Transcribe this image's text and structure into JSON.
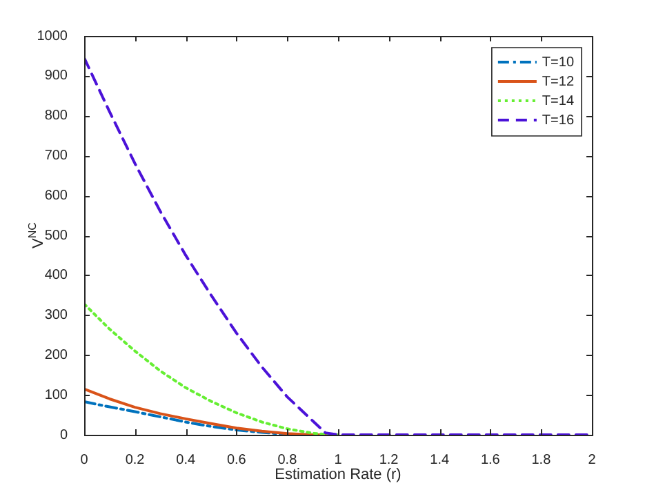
{
  "chart_data": {
    "type": "line",
    "xlabel": "Estimation Rate (r)",
    "ylabel": "V$^{NC}$",
    "x": [
      0,
      0.1,
      0.2,
      0.3,
      0.4,
      0.5,
      0.6,
      0.7,
      0.8,
      0.9,
      0.95,
      1,
      1.2,
      1.4,
      1.6,
      1.8,
      2
    ],
    "series": [
      {
        "name": "T=10",
        "color": "#0072bd",
        "line_style": "dashdot",
        "values": [
          83,
          70,
          58,
          45,
          32,
          21,
          12,
          6,
          1,
          0,
          null,
          null,
          null,
          null,
          null,
          null,
          null
        ]
      },
      {
        "name": "T=12",
        "color": "#d95319",
        "line_style": "solid",
        "values": [
          115,
          90,
          69,
          53,
          40,
          28,
          17,
          9,
          3,
          0,
          0,
          0,
          null,
          null,
          null,
          null,
          null
        ]
      },
      {
        "name": "T=14",
        "color": "#66ee33",
        "line_style": "dotted",
        "values": [
          328,
          265,
          210,
          160,
          118,
          84,
          55,
          32,
          15,
          4,
          1,
          0,
          null,
          null,
          null,
          null,
          null
        ]
      },
      {
        "name": "T=16",
        "color": "#4b12d8",
        "line_style": "dashed",
        "values": [
          945,
          810,
          680,
          560,
          450,
          350,
          255,
          170,
          95,
          35,
          5,
          0,
          0,
          0,
          0,
          0,
          0
        ]
      }
    ],
    "xlim": [
      0,
      2
    ],
    "xticks": [
      0,
      0.2,
      0.4,
      0.6,
      0.8,
      1,
      1.2,
      1.4,
      1.6,
      1.8,
      2
    ],
    "ylim": [
      0,
      1000
    ],
    "yticks": [
      0,
      100,
      200,
      300,
      400,
      500,
      600,
      700,
      800,
      900,
      1000
    ],
    "grid": false,
    "legend": "top right",
    "marker": "none"
  }
}
